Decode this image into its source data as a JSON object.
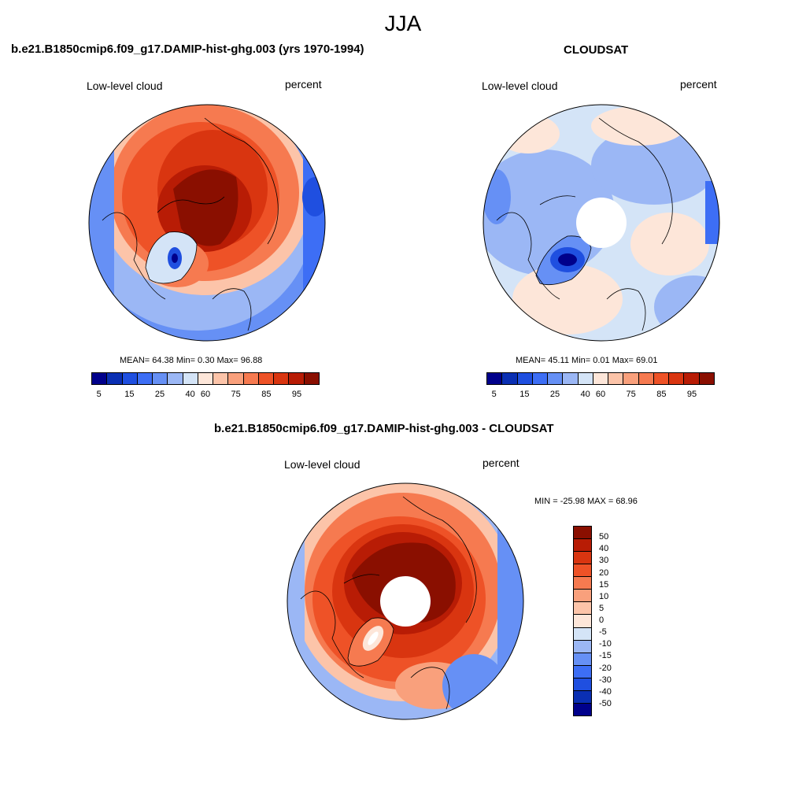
{
  "figure": {
    "season": "JJA"
  },
  "panel_model": {
    "title": "b.e21.B1850cmip6.f09_g17.DAMIP-hist-ghg.003 (yrs 1970-1994)",
    "variable": "Low-level cloud",
    "units": "percent",
    "stats": "MEAN=  64.38  Min=   0.30  Max=  96.88",
    "colorbar_ticks": [
      "5",
      "15",
      "25",
      "40",
      "60",
      "75",
      "85",
      "95"
    ]
  },
  "panel_obs": {
    "title": "CLOUDSAT",
    "variable": "Low-level cloud",
    "units": "percent",
    "stats": "MEAN=  45.11  Min=   0.01  Max=  69.01",
    "colorbar_ticks": [
      "5",
      "15",
      "25",
      "40",
      "60",
      "75",
      "85",
      "95"
    ]
  },
  "panel_diff": {
    "title": "b.e21.B1850cmip6.f09_g17.DAMIP-hist-ghg.003 - CLOUDSAT",
    "variable": "Low-level cloud",
    "units": "percent",
    "stats": "MIN = -25.98 MAX =  68.96",
    "colorbar_ticks": [
      "50",
      "40",
      "30",
      "20",
      "15",
      "10",
      "5",
      "0",
      "-5",
      "-10",
      "-15",
      "-20",
      "-30",
      "-40",
      "-50"
    ]
  },
  "colors": {
    "seq": [
      "#00008b",
      "#0a2fb3",
      "#1f4fe0",
      "#3d6ef5",
      "#6690f5",
      "#9bb7f5",
      "#d4e4f7",
      "#fde6d9",
      "#fcc4a9",
      "#f9a07c",
      "#f67a50",
      "#ee5227",
      "#d93510",
      "#b81c05",
      "#8a0f00"
    ],
    "div": [
      "#8a0f00",
      "#b81c05",
      "#d93510",
      "#ee5227",
      "#f67a50",
      "#f9a07c",
      "#fcc4a9",
      "#fde6d9",
      "#d4e4f7",
      "#9bb7f5",
      "#6690f5",
      "#3d6ef5",
      "#1f4fe0",
      "#0a2fb3",
      "#00008b"
    ]
  }
}
